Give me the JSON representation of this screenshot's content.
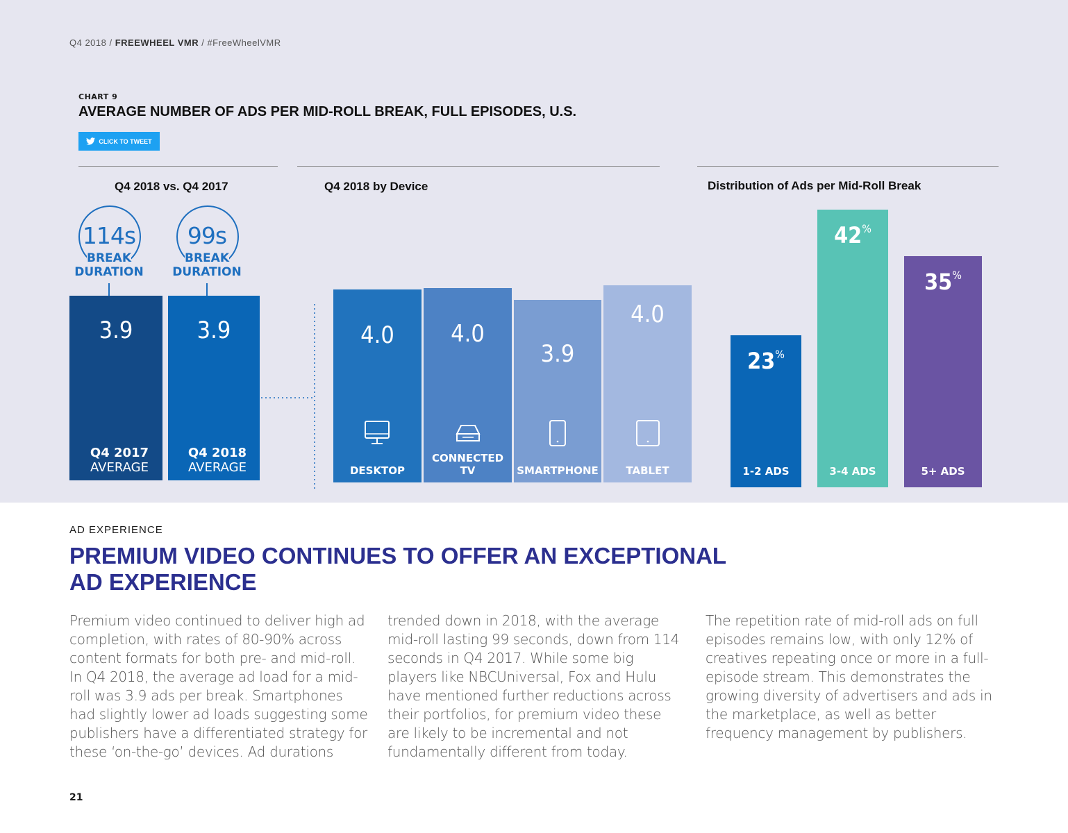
{
  "header": {
    "crumb_pre": "Q4 2018 / ",
    "crumb_bold": "FREEWHEEL VMR",
    "crumb_post": " / #FreeWheelVMR"
  },
  "chart": {
    "number": "CHART 9",
    "title": "AVERAGE NUMBER OF ADS PER MID-ROLL BREAK, FULL EPISODES, U.S.",
    "tweet_label": "CLICK TO TWEET",
    "sections": [
      "Q4 2018 vs. Q4 2017",
      "Q4 2018 by Device",
      "Distribution of Ads per Mid-Roll Break"
    ]
  },
  "chart_data": [
    {
      "type": "bar",
      "title": "Q4 2018 vs. Q4 2017",
      "categories": [
        "Q4 2017 AVERAGE",
        "Q4 2018 AVERAGE"
      ],
      "category_lines": [
        [
          "Q4 2017",
          "AVERAGE"
        ],
        [
          "Q4 2018",
          "AVERAGE"
        ]
      ],
      "values": [
        3.9,
        3.9
      ],
      "value_labels": [
        "3.9",
        "3.9"
      ],
      "annotations": [
        {
          "value": "114s",
          "label_lines": [
            "BREAK",
            "DURATION"
          ]
        },
        {
          "value": "99s",
          "label_lines": [
            "BREAK",
            "DURATION"
          ]
        }
      ],
      "colors": [
        "#134a87",
        "#0a66b6"
      ]
    },
    {
      "type": "bar",
      "title": "Q4 2018 by Device",
      "categories": [
        "DESKTOP",
        "CONNECTED TV",
        "SMARTPHONE",
        "TABLET"
      ],
      "values": [
        4.0,
        4.0,
        3.9,
        4.0
      ],
      "value_labels": [
        "4.0",
        "4.0",
        "3.9",
        "4.0"
      ],
      "icons": [
        "desktop-icon",
        "connected-tv-icon",
        "smartphone-icon",
        "tablet-icon"
      ],
      "colors": [
        "#2173bd",
        "#4d82c5",
        "#7a9dd2",
        "#a3b8e0"
      ]
    },
    {
      "type": "bar",
      "title": "Distribution of Ads per Mid-Roll Break",
      "categories": [
        "1-2 ADS",
        "3-4 ADS",
        "5+ ADS"
      ],
      "values": [
        23,
        42,
        35
      ],
      "value_labels": [
        "23",
        "42",
        "35"
      ],
      "unit": "%",
      "colors": [
        "#0a66b6",
        "#58c3b5",
        "#6a54a3"
      ]
    }
  ],
  "article": {
    "kicker": "AD EXPERIENCE",
    "headline_1": "PREMIUM VIDEO CONTINUES TO OFFER AN EXCEPTIONAL",
    "headline_2": "AD EXPERIENCE",
    "col1": "Premium video continued to deliver high ad completion, with rates of 80-90% across content formats for both pre- and mid-roll. In Q4 2018, the average ad load for a mid-roll was 3.9 ads per break. Smartphones had slightly lower ad loads suggesting some publishers have a differentiated strategy for these ‘on-the-go’ devices. Ad durations",
    "col2": "trended down in 2018, with the average mid-roll lasting 99 seconds, down from 114 seconds in Q4 2017. While some big players like NBCUniversal, Fox and Hulu have mentioned further reductions across their portfolios, for premium video these are likely to be incremental and not fundamentally different from today.",
    "col3": "The repetition rate of mid-roll ads on full episodes remains low, with only 12% of creatives repeating once or more in a full-episode stream. This demonstrates the growing diversity of advertisers and ads in the marketplace, as well as better frequency management by publishers."
  },
  "page_number": "21"
}
